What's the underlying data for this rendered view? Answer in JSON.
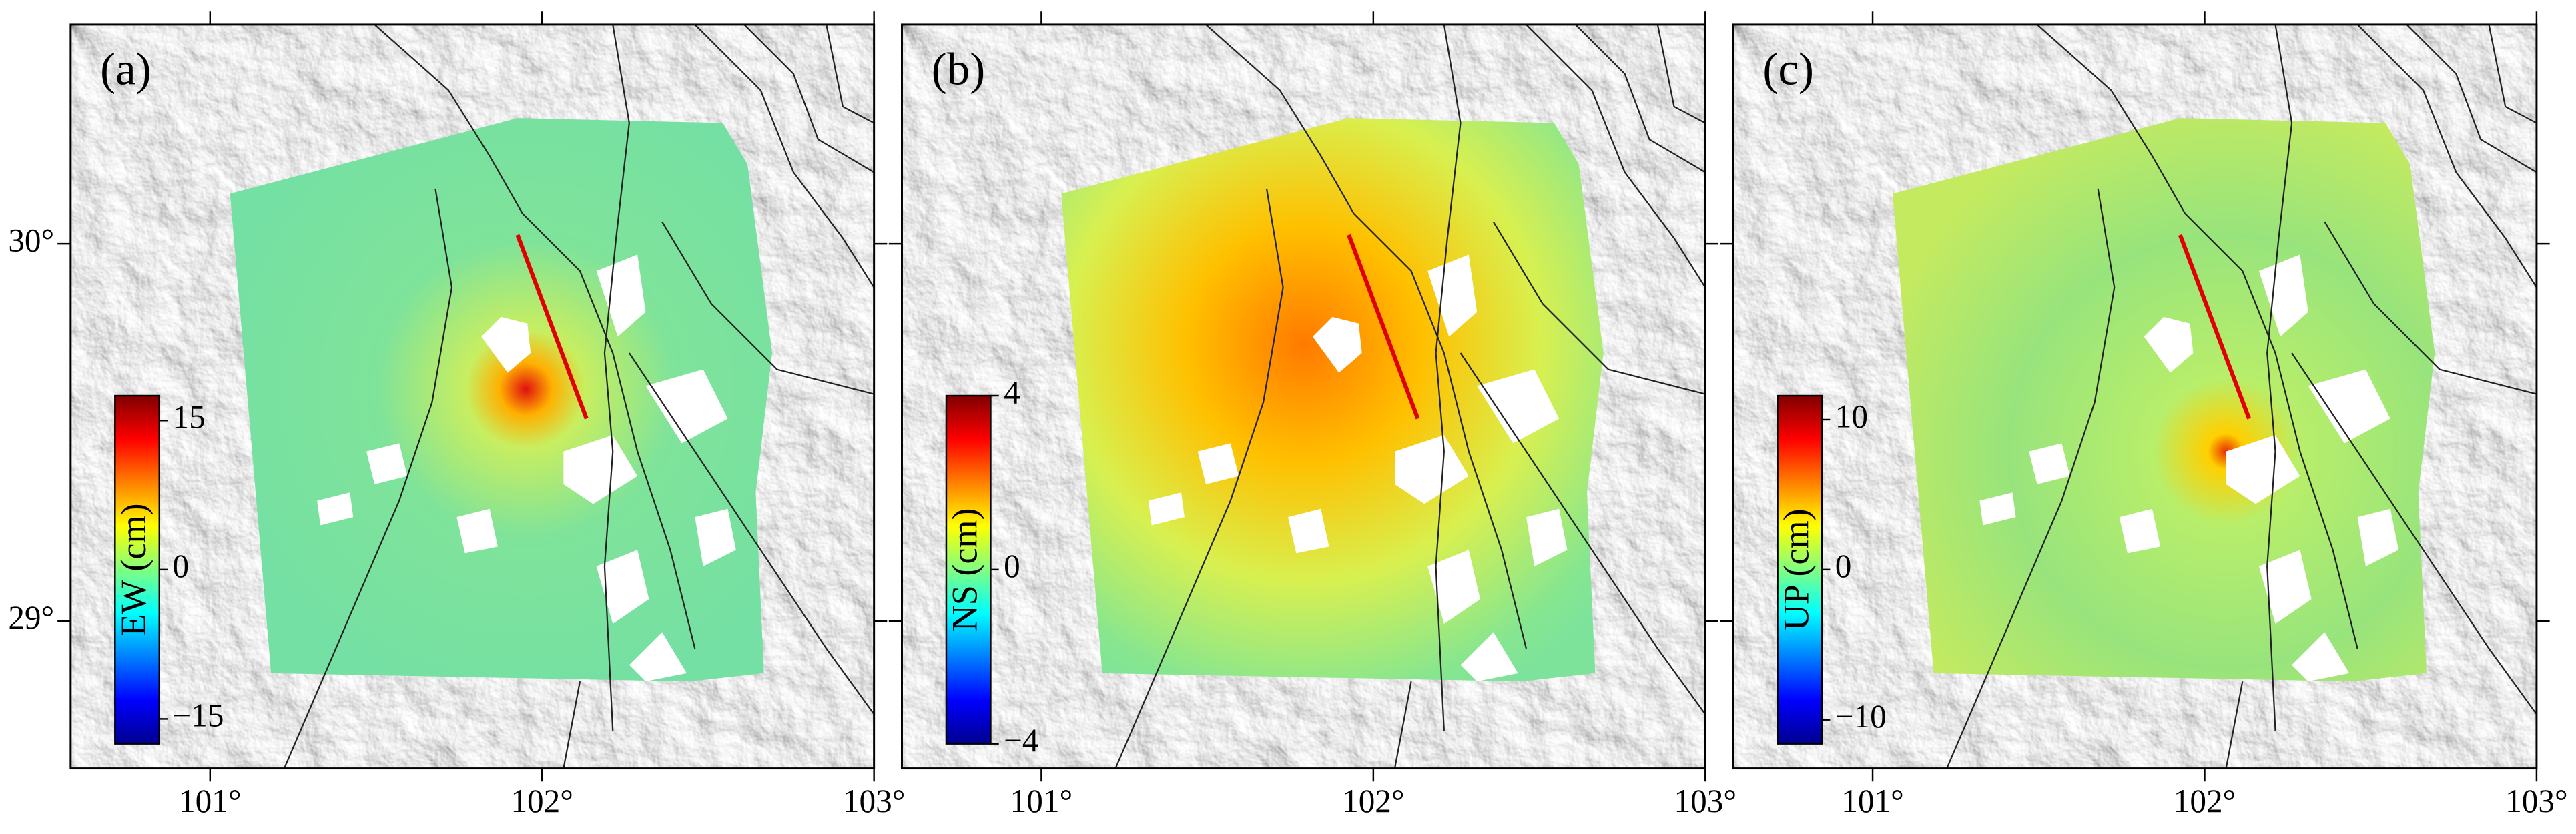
{
  "xlim": [
    100.58,
    103.0
  ],
  "ylim": [
    28.61,
    30.58
  ],
  "xticks": [
    {
      "value": 101,
      "label": "101°"
    },
    {
      "value": 102,
      "label": "102°"
    },
    {
      "value": 103,
      "label": "103°"
    }
  ],
  "yticks": [
    {
      "value": 29,
      "label": "29°"
    },
    {
      "value": 30,
      "label": "30°"
    }
  ],
  "panels": [
    {
      "label": "(a)",
      "colorbar": {
        "title": "EW (cm)",
        "clim": [
          -17.5,
          17.5
        ],
        "ticks": [
          15,
          0,
          {
            "value": -15,
            "label": "−15"
          }
        ]
      }
    },
    {
      "label": "(b)",
      "colorbar": {
        "title": "NS (cm)",
        "clim": [
          -4,
          4
        ],
        "ticks": [
          4,
          0,
          {
            "value": -4,
            "label": "−4"
          }
        ]
      }
    },
    {
      "label": "(c)",
      "colorbar": {
        "title": "UP (cm)",
        "clim": [
          -11.6,
          11.6
        ],
        "ticks": [
          10,
          0,
          {
            "value": -10,
            "label": "−10"
          }
        ]
      }
    }
  ]
}
